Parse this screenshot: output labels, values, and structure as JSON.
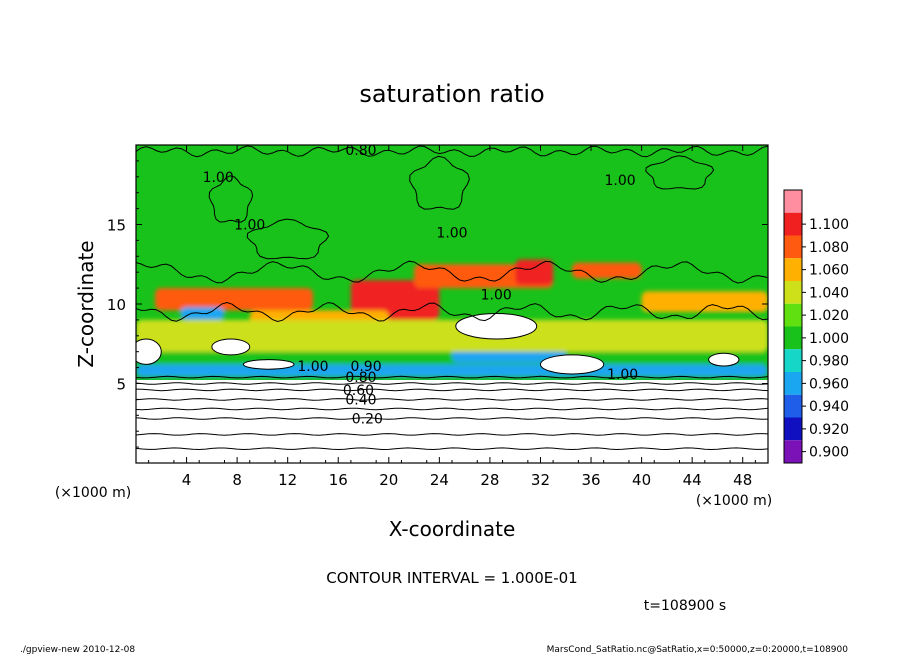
{
  "chart_data": {
    "type": "heatmap",
    "title": "saturation ratio",
    "xlabel": "X-coordinate",
    "ylabel": "Z-coordinate",
    "x_unit_left": "(×1000 m)",
    "x_unit_right": "(×1000 m)",
    "xlim": [
      0,
      50
    ],
    "ylim": [
      0,
      20
    ],
    "x_ticks": [
      4,
      8,
      12,
      16,
      20,
      24,
      28,
      32,
      36,
      40,
      44,
      48
    ],
    "y_ticks": [
      5,
      10,
      15
    ],
    "colorbar": {
      "levels": [
        "0.900",
        "0.920",
        "0.940",
        "0.960",
        "0.980",
        "1.000",
        "1.020",
        "1.040",
        "1.060",
        "1.080",
        "1.100"
      ],
      "colors": [
        "#7a12b8",
        "#1010c0",
        "#1e5ee8",
        "#1aa6f0",
        "#16d6c8",
        "#19c21a",
        "#60e010",
        "#cde01a",
        "#ffb000",
        "#ff5a10",
        "#f02020",
        "#ff8fa0"
      ]
    },
    "contour_labels": [
      {
        "text": "0.20",
        "x": 18.3,
        "z": 2.8
      },
      {
        "text": "0.40",
        "x": 17.8,
        "z": 4.0
      },
      {
        "text": "0.60",
        "x": 17.6,
        "z": 4.6
      },
      {
        "text": "0.80",
        "x": 17.8,
        "z": 19.7
      },
      {
        "text": "0.80",
        "x": 17.8,
        "z": 5.4
      },
      {
        "text": "0.90",
        "x": 18.2,
        "z": 6.1
      },
      {
        "text": "1.00",
        "x": 28.5,
        "z": 10.6
      },
      {
        "text": "1.00",
        "x": 6.5,
        "z": 18.0
      },
      {
        "text": "1.00",
        "x": 9.0,
        "z": 15.0
      },
      {
        "text": "1.00",
        "x": 25.0,
        "z": 14.5
      },
      {
        "text": "1.00",
        "x": 38.3,
        "z": 17.8
      },
      {
        "text": "1.00",
        "x": 14.0,
        "z": 6.1
      },
      {
        "text": "1.00",
        "x": 38.5,
        "z": 5.6
      }
    ],
    "horizontal_contours_z": [
      0.9,
      1.8,
      2.8,
      3.4,
      4.0,
      4.6,
      5.0,
      5.4
    ],
    "color_regions": [
      {
        "level": 0.94,
        "x": [
          0.0,
          50.0
        ],
        "z": [
          5.4,
          6.2
        ]
      },
      {
        "level": 0.98,
        "x": [
          0.0,
          50.0
        ],
        "z": [
          6.2,
          7.0
        ]
      },
      {
        "level": 1.06,
        "x": [
          1.5,
          14.0
        ],
        "z": [
          9.6,
          11.0
        ]
      },
      {
        "level": 1.08,
        "x": [
          17.0,
          24.0
        ],
        "z": [
          9.0,
          11.5
        ]
      },
      {
        "level": 1.06,
        "x": [
          22.0,
          33.0
        ],
        "z": [
          11.0,
          12.5
        ]
      },
      {
        "level": 1.08,
        "x": [
          30.0,
          33.0
        ],
        "z": [
          11.2,
          12.8
        ]
      },
      {
        "level": 1.06,
        "x": [
          34.5,
          40.0
        ],
        "z": [
          11.6,
          12.6
        ]
      },
      {
        "level": 1.04,
        "x": [
          9.0,
          20.0
        ],
        "z": [
          8.5,
          9.6
        ]
      },
      {
        "level": 0.94,
        "x": [
          3.5,
          7.0
        ],
        "z": [
          9.0,
          9.8
        ]
      },
      {
        "level": 0.94,
        "x": [
          25.0,
          34.0
        ],
        "z": [
          6.3,
          7.2
        ]
      },
      {
        "level": 1.04,
        "x": [
          40.0,
          50.0
        ],
        "z": [
          9.5,
          10.8
        ]
      },
      {
        "level": 1.02,
        "x": [
          0.0,
          50.0
        ],
        "z": [
          7.0,
          9.0
        ]
      }
    ],
    "white_regions": [
      {
        "x": 0.8,
        "z": 7.0,
        "rx": 1.2,
        "rz": 0.8
      },
      {
        "x": 7.5,
        "z": 7.3,
        "rx": 1.5,
        "rz": 0.5
      },
      {
        "x": 10.5,
        "z": 6.2,
        "rx": 2.0,
        "rz": 0.3
      },
      {
        "x": 28.5,
        "z": 8.6,
        "rx": 3.2,
        "rz": 0.8
      },
      {
        "x": 34.5,
        "z": 6.2,
        "rx": 2.5,
        "rz": 0.6
      },
      {
        "x": 46.5,
        "z": 6.5,
        "rx": 1.2,
        "rz": 0.4
      }
    ]
  },
  "annotation": "CONTOUR INTERVAL = 1.000E-01",
  "time_label": "t=108900 s",
  "footer_left": "./gpview-new 2010-12-08",
  "footer_right": "MarsCond_SatRatio.nc@SatRatio,x=0:50000,z=0:20000,t=108900",
  "colors": {
    "background": "#19c21a",
    "frame": "#000000",
    "text": "#000000"
  }
}
